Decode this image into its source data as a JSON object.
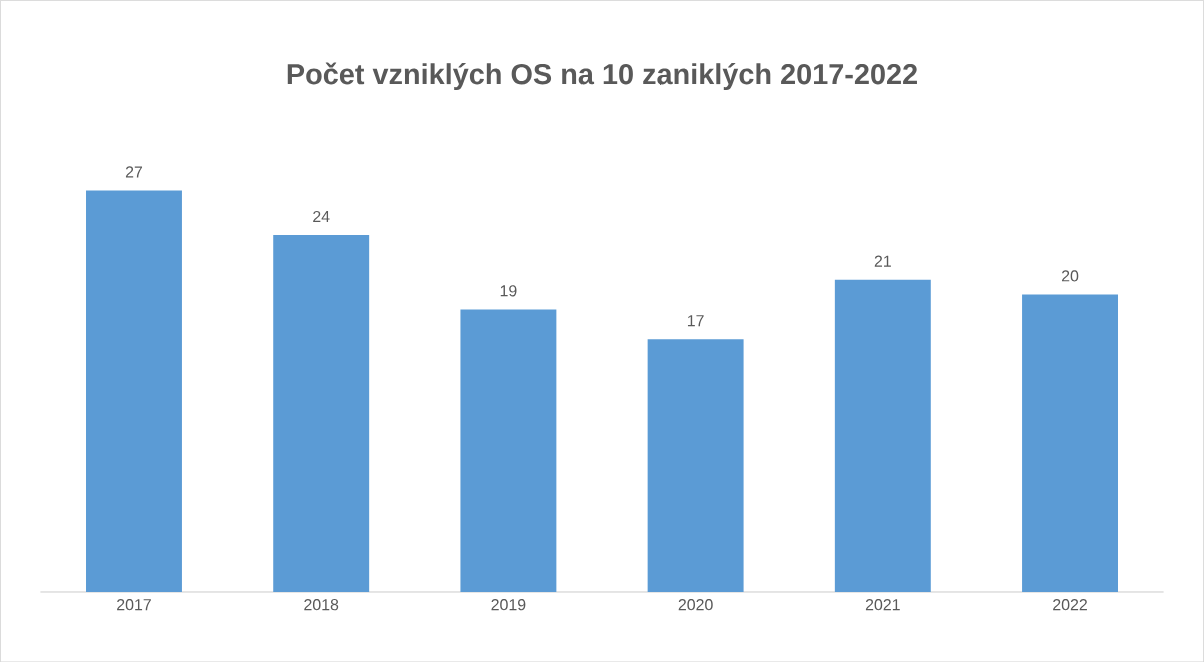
{
  "chart_data": {
    "type": "bar",
    "title": "Počet vzniklých  OS na 10 zaniklých  2017-2022",
    "categories": [
      "2017",
      "2018",
      "2019",
      "2020",
      "2021",
      "2022"
    ],
    "values": [
      27,
      24,
      19,
      17,
      21,
      20
    ],
    "color": "#5b9bd5",
    "data_labels": true
  }
}
